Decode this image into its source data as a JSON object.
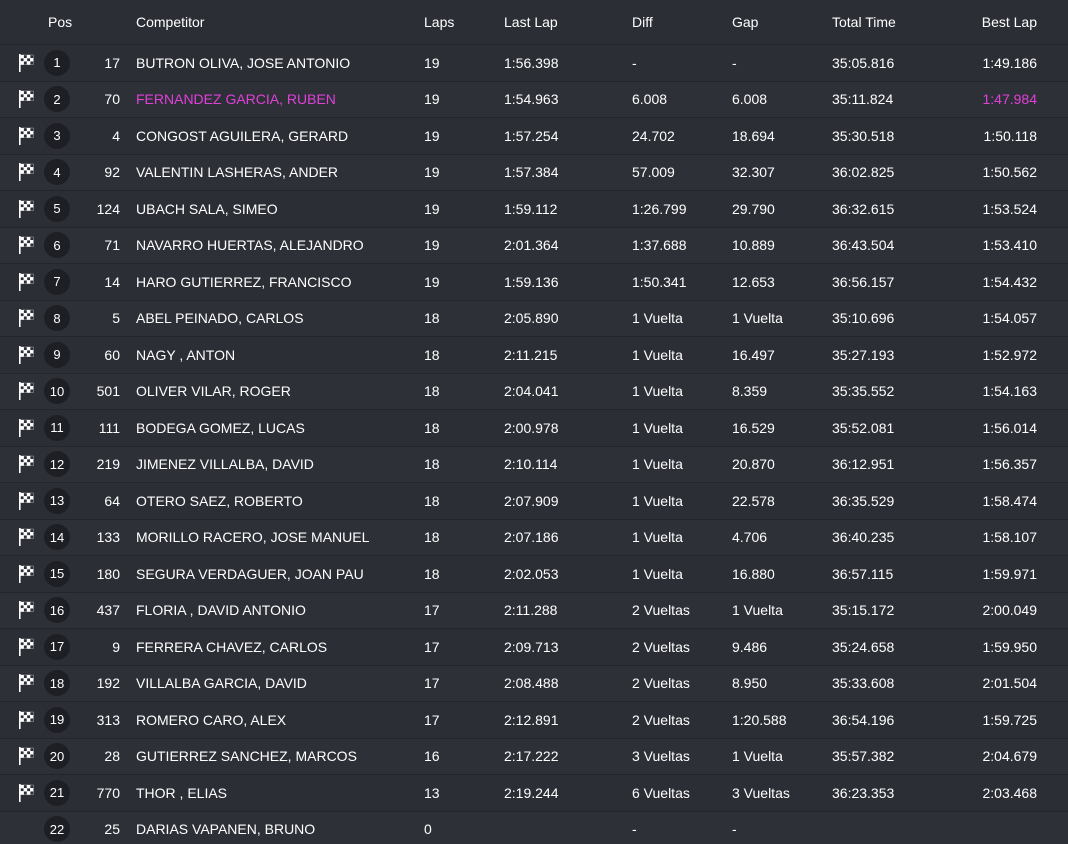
{
  "columns": {
    "pos": "Pos",
    "competitor": "Competitor",
    "laps": "Laps",
    "last_lap": "Last Lap",
    "diff": "Diff",
    "gap": "Gap",
    "total_time": "Total Time",
    "best_lap": "Best Lap"
  },
  "colors": {
    "background": "#2c2e36",
    "highlight": "#e040d8",
    "badge": "#1e1f24"
  },
  "rows": [
    {
      "pos": "1",
      "num": "17",
      "name": "BUTRON OLIVA, JOSE ANTONIO",
      "laps": "19",
      "last": "1:56.398",
      "diff": "-",
      "gap": "-",
      "total": "35:05.816",
      "best": "1:49.186",
      "flag": true,
      "highlight": false
    },
    {
      "pos": "2",
      "num": "70",
      "name": "FERNANDEZ GARCIA, RUBEN",
      "laps": "19",
      "last": "1:54.963",
      "diff": "6.008",
      "gap": "6.008",
      "total": "35:11.824",
      "best": "1:47.984",
      "flag": true,
      "highlight": true
    },
    {
      "pos": "3",
      "num": "4",
      "name": "CONGOST AGUILERA, GERARD",
      "laps": "19",
      "last": "1:57.254",
      "diff": "24.702",
      "gap": "18.694",
      "total": "35:30.518",
      "best": "1:50.118",
      "flag": true,
      "highlight": false
    },
    {
      "pos": "4",
      "num": "92",
      "name": "VALENTIN LASHERAS, ANDER",
      "laps": "19",
      "last": "1:57.384",
      "diff": "57.009",
      "gap": "32.307",
      "total": "36:02.825",
      "best": "1:50.562",
      "flag": true,
      "highlight": false
    },
    {
      "pos": "5",
      "num": "124",
      "name": "UBACH SALA, SIMEO",
      "laps": "19",
      "last": "1:59.112",
      "diff": "1:26.799",
      "gap": "29.790",
      "total": "36:32.615",
      "best": "1:53.524",
      "flag": true,
      "highlight": false
    },
    {
      "pos": "6",
      "num": "71",
      "name": "NAVARRO HUERTAS, ALEJANDRO",
      "laps": "19",
      "last": "2:01.364",
      "diff": "1:37.688",
      "gap": "10.889",
      "total": "36:43.504",
      "best": "1:53.410",
      "flag": true,
      "highlight": false
    },
    {
      "pos": "7",
      "num": "14",
      "name": "HARO GUTIERREZ, FRANCISCO",
      "laps": "19",
      "last": "1:59.136",
      "diff": "1:50.341",
      "gap": "12.653",
      "total": "36:56.157",
      "best": "1:54.432",
      "flag": true,
      "highlight": false
    },
    {
      "pos": "8",
      "num": "5",
      "name": "ABEL PEINADO, CARLOS",
      "laps": "18",
      "last": "2:05.890",
      "diff": "1 Vuelta",
      "gap": "1 Vuelta",
      "total": "35:10.696",
      "best": "1:54.057",
      "flag": true,
      "highlight": false
    },
    {
      "pos": "9",
      "num": "60",
      "name": "NAGY , ANTON",
      "laps": "18",
      "last": "2:11.215",
      "diff": "1 Vuelta",
      "gap": "16.497",
      "total": "35:27.193",
      "best": "1:52.972",
      "flag": true,
      "highlight": false
    },
    {
      "pos": "10",
      "num": "501",
      "name": "OLIVER VILAR, ROGER",
      "laps": "18",
      "last": "2:04.041",
      "diff": "1 Vuelta",
      "gap": "8.359",
      "total": "35:35.552",
      "best": "1:54.163",
      "flag": true,
      "highlight": false
    },
    {
      "pos": "11",
      "num": "111",
      "name": "BODEGA GOMEZ, LUCAS",
      "laps": "18",
      "last": "2:00.978",
      "diff": "1 Vuelta",
      "gap": "16.529",
      "total": "35:52.081",
      "best": "1:56.014",
      "flag": true,
      "highlight": false
    },
    {
      "pos": "12",
      "num": "219",
      "name": "JIMENEZ VILLALBA, DAVID",
      "laps": "18",
      "last": "2:10.114",
      "diff": "1 Vuelta",
      "gap": "20.870",
      "total": "36:12.951",
      "best": "1:56.357",
      "flag": true,
      "highlight": false
    },
    {
      "pos": "13",
      "num": "64",
      "name": "OTERO SAEZ, ROBERTO",
      "laps": "18",
      "last": "2:07.909",
      "diff": "1 Vuelta",
      "gap": "22.578",
      "total": "36:35.529",
      "best": "1:58.474",
      "flag": true,
      "highlight": false
    },
    {
      "pos": "14",
      "num": "133",
      "name": "MORILLO RACERO, JOSE MANUEL",
      "laps": "18",
      "last": "2:07.186",
      "diff": "1 Vuelta",
      "gap": "4.706",
      "total": "36:40.235",
      "best": "1:58.107",
      "flag": true,
      "highlight": false
    },
    {
      "pos": "15",
      "num": "180",
      "name": "SEGURA VERDAGUER, JOAN PAU",
      "laps": "18",
      "last": "2:02.053",
      "diff": "1 Vuelta",
      "gap": "16.880",
      "total": "36:57.115",
      "best": "1:59.971",
      "flag": true,
      "highlight": false
    },
    {
      "pos": "16",
      "num": "437",
      "name": "FLORIA , DAVID ANTONIO",
      "laps": "17",
      "last": "2:11.288",
      "diff": "2 Vueltas",
      "gap": "1 Vuelta",
      "total": "35:15.172",
      "best": "2:00.049",
      "flag": true,
      "highlight": false
    },
    {
      "pos": "17",
      "num": "9",
      "name": "FERRERA CHAVEZ, CARLOS",
      "laps": "17",
      "last": "2:09.713",
      "diff": "2 Vueltas",
      "gap": "9.486",
      "total": "35:24.658",
      "best": "1:59.950",
      "flag": true,
      "highlight": false
    },
    {
      "pos": "18",
      "num": "192",
      "name": "VILLALBA GARCIA, DAVID",
      "laps": "17",
      "last": "2:08.488",
      "diff": "2 Vueltas",
      "gap": "8.950",
      "total": "35:33.608",
      "best": "2:01.504",
      "flag": true,
      "highlight": false
    },
    {
      "pos": "19",
      "num": "313",
      "name": "ROMERO CARO, ALEX",
      "laps": "17",
      "last": "2:12.891",
      "diff": "2 Vueltas",
      "gap": "1:20.588",
      "total": "36:54.196",
      "best": "1:59.725",
      "flag": true,
      "highlight": false
    },
    {
      "pos": "20",
      "num": "28",
      "name": "GUTIERREZ SANCHEZ, MARCOS",
      "laps": "16",
      "last": "2:17.222",
      "diff": "3 Vueltas",
      "gap": "1 Vuelta",
      "total": "35:57.382",
      "best": "2:04.679",
      "flag": true,
      "highlight": false
    },
    {
      "pos": "21",
      "num": "770",
      "name": "THOR , ELIAS",
      "laps": "13",
      "last": "2:19.244",
      "diff": "6 Vueltas",
      "gap": "3 Vueltas",
      "total": "36:23.353",
      "best": "2:03.468",
      "flag": true,
      "highlight": false
    },
    {
      "pos": "22",
      "num": "25",
      "name": "DARIAS VAPANEN, BRUNO",
      "laps": "0",
      "last": "",
      "diff": "-",
      "gap": "-",
      "total": "",
      "best": "",
      "flag": false,
      "highlight": false
    }
  ]
}
